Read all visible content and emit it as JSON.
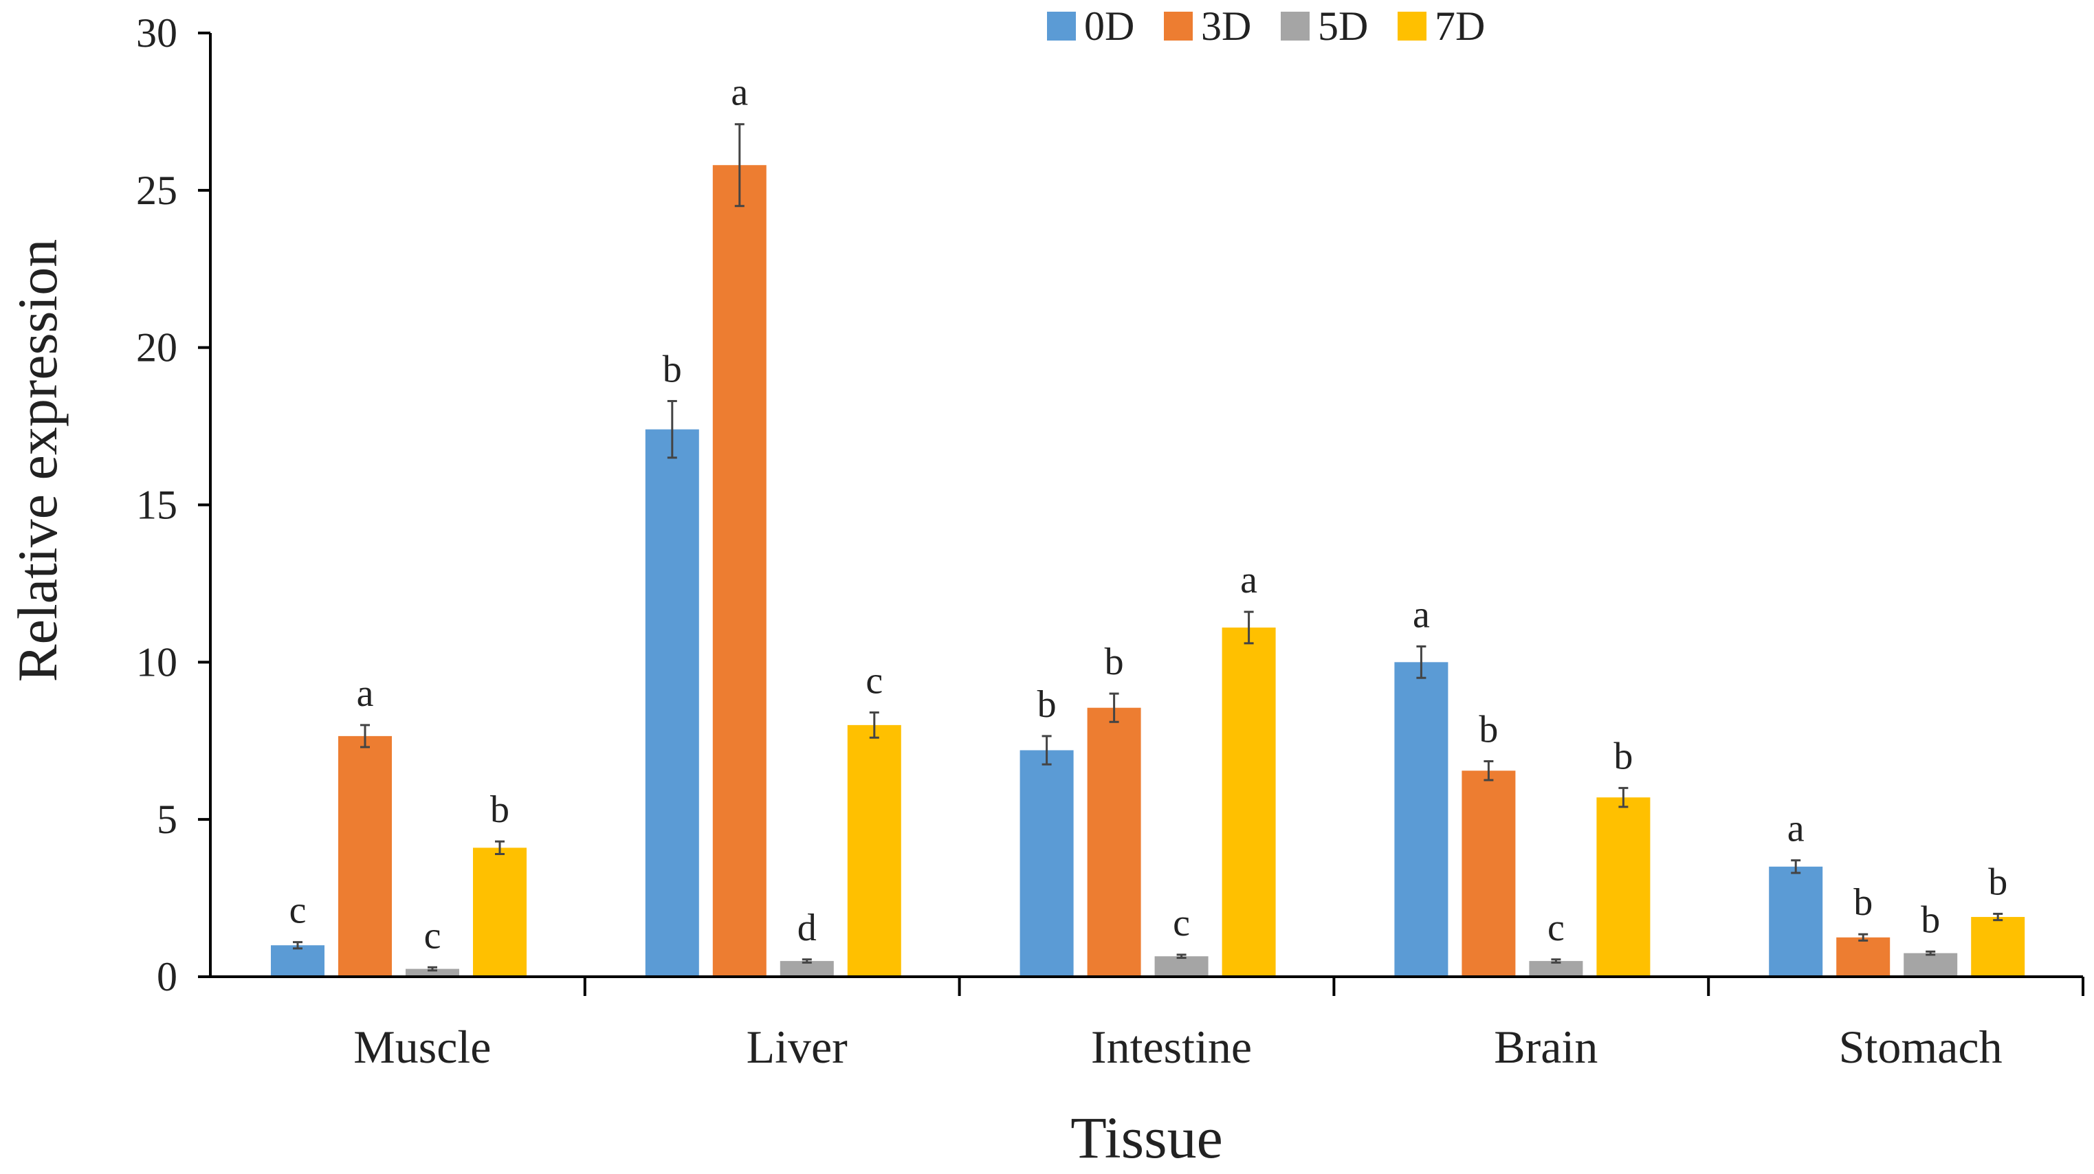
{
  "chart_data": {
    "type": "bar",
    "title": "",
    "xlabel": "Tissue",
    "ylabel": "Relative expression",
    "ylim": [
      0,
      30
    ],
    "yticks": [
      0,
      5,
      10,
      15,
      20,
      25,
      30
    ],
    "ytick_labels": [
      "0",
      "5",
      "10",
      "15",
      "20",
      "25",
      "30"
    ],
    "grid": false,
    "legend_position": "top-center",
    "categories": [
      "Muscle",
      "Liver",
      "Intestine",
      "Brain",
      "Stomach"
    ],
    "series": [
      {
        "name": "0D",
        "color": "#5B9BD5",
        "values": [
          1.0,
          17.4,
          7.2,
          10.0,
          3.5
        ],
        "errors": [
          0.1,
          0.9,
          0.45,
          0.5,
          0.2
        ],
        "letters": [
          "c",
          "b",
          "b",
          "a",
          "a"
        ]
      },
      {
        "name": "3D",
        "color": "#ED7D31",
        "values": [
          7.65,
          25.8,
          8.55,
          6.55,
          1.25
        ],
        "errors": [
          0.35,
          1.3,
          0.45,
          0.3,
          0.1
        ],
        "letters": [
          "a",
          "a",
          "b",
          "b",
          "b"
        ]
      },
      {
        "name": "5D",
        "color": "#A5A5A5",
        "values": [
          0.25,
          0.5,
          0.65,
          0.5,
          0.75
        ],
        "errors": [
          0.05,
          0.05,
          0.05,
          0.05,
          0.05
        ],
        "letters": [
          "c",
          "d",
          "c",
          "c",
          "b"
        ]
      },
      {
        "name": "7D",
        "color": "#FFC000",
        "values": [
          4.1,
          8.0,
          11.1,
          5.7,
          1.9
        ],
        "errors": [
          0.2,
          0.4,
          0.5,
          0.3,
          0.1
        ],
        "letters": [
          "b",
          "c",
          "a",
          "b",
          "b"
        ]
      }
    ]
  }
}
